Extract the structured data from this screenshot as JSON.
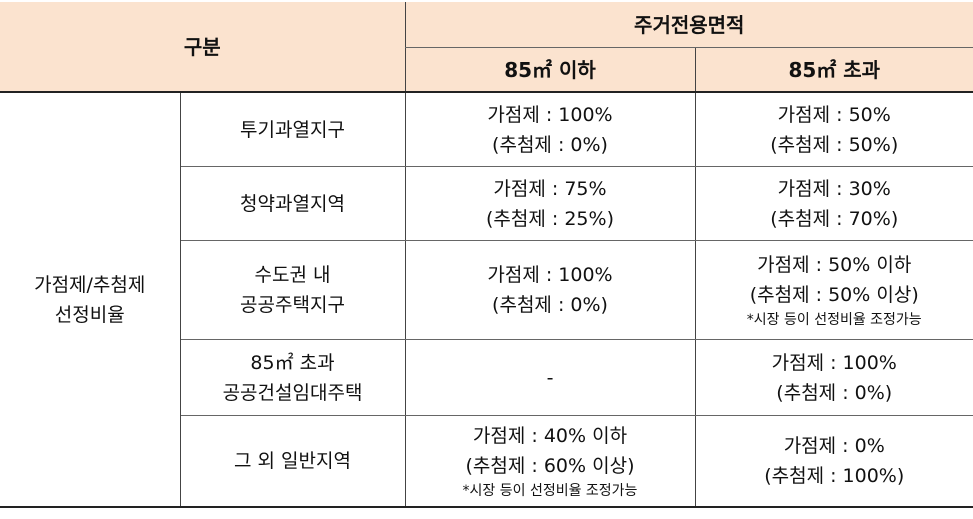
{
  "header": {
    "gubun": "구분",
    "area": "주거전용면적",
    "col_under": "85㎡ 이하",
    "col_over": "85㎡ 초과"
  },
  "category": [
    "가점제/추첨제",
    "선정비율"
  ],
  "rows": [
    {
      "label": [
        "투기과열지구"
      ],
      "under": [
        "가점제 : 100%",
        "(추첨제 : 0%)"
      ],
      "over": [
        "가점제 : 50%",
        "(추첨제 : 50%)"
      ]
    },
    {
      "label": [
        "청약과열지역"
      ],
      "under": [
        "가점제 : 75%",
        "(추첨제 : 25%)"
      ],
      "over": [
        "가점제 : 30%",
        "(추첨제 : 70%)"
      ]
    },
    {
      "label": [
        "수도권 내",
        "공공주택지구"
      ],
      "under": [
        "가점제 : 100%",
        "(추첨제 : 0%)"
      ],
      "over": [
        "가점제 : 50% 이하",
        "(추첨제 : 50% 이상)"
      ],
      "over_note": "*시장 등이 선정비율 조정가능"
    },
    {
      "label": [
        "85㎡ 초과",
        "공공건설임대주택"
      ],
      "under": [
        "-"
      ],
      "over": [
        "가점제 : 100%",
        "(추첨제 : 0%)"
      ]
    },
    {
      "label": [
        "그 외 일반지역"
      ],
      "under": [
        "가점제 : 40% 이하",
        "(추첨제 : 60% 이상)"
      ],
      "under_note": "*시장 등이 선정비율 조정가능",
      "over": [
        "가점제 : 0%",
        "(추첨제 : 100%)"
      ]
    }
  ]
}
